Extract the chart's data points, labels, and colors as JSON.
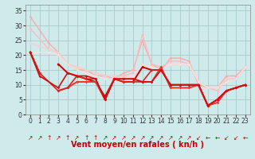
{
  "title": "",
  "xlabel": "Vent moyen/en rafales ( kn/h )",
  "xlim": [
    -0.5,
    23.5
  ],
  "ylim": [
    0,
    37
  ],
  "yticks": [
    0,
    5,
    10,
    15,
    20,
    25,
    30,
    35
  ],
  "xticks": [
    0,
    1,
    2,
    3,
    4,
    5,
    6,
    7,
    8,
    9,
    10,
    11,
    12,
    13,
    14,
    15,
    16,
    17,
    18,
    19,
    20,
    21,
    22,
    23
  ],
  "bg_color": "#ceeaea",
  "grid_color": "#aacccc",
  "series": [
    {
      "x": [
        0,
        2,
        3,
        4,
        5,
        6,
        7,
        8,
        9,
        10,
        11,
        12,
        13,
        14,
        15,
        16,
        17,
        18,
        19,
        20,
        21,
        22,
        23
      ],
      "y": [
        33,
        24,
        21,
        17,
        15,
        15,
        13,
        13,
        12,
        14,
        15,
        25,
        17,
        15,
        19,
        19,
        18,
        10,
        9,
        9,
        13,
        13,
        16
      ],
      "color": "#ffaaaa",
      "lw": 1.0
    },
    {
      "x": [
        0,
        2,
        3,
        4,
        5,
        6,
        7,
        8,
        9,
        10,
        11,
        12,
        13,
        14,
        15,
        16,
        17,
        18,
        19,
        20,
        21,
        22,
        23
      ],
      "y": [
        29,
        22,
        21,
        17,
        16,
        15,
        14,
        13,
        13,
        13,
        14,
        27,
        17,
        16,
        18,
        18,
        17,
        11,
        9,
        8,
        12,
        12,
        16
      ],
      "color": "#ffbbbb",
      "lw": 1.0
    },
    {
      "x": [
        0,
        2,
        3,
        4,
        5,
        6,
        7,
        8,
        9,
        10,
        11,
        12,
        13,
        14,
        15,
        16,
        17,
        18,
        19,
        20,
        21,
        22,
        23
      ],
      "y": [
        24,
        22,
        21,
        17,
        16,
        15,
        14,
        13,
        13,
        12,
        13,
        17,
        16,
        15,
        17,
        17,
        17,
        11,
        9,
        9,
        12,
        12,
        16
      ],
      "color": "#ffcccc",
      "lw": 1.0
    },
    {
      "x": [
        0,
        2,
        3,
        4,
        5,
        6,
        7,
        8,
        9,
        10,
        11,
        12,
        13,
        14,
        15,
        16,
        17,
        18,
        19,
        20,
        21,
        22,
        23
      ],
      "y": [
        21,
        21,
        20,
        17,
        15,
        14,
        13,
        12,
        12,
        12,
        13,
        17,
        16,
        15,
        17,
        17,
        17,
        11,
        9,
        9,
        11,
        12,
        16
      ],
      "color": "#ffdddd",
      "lw": 1.0
    },
    {
      "x": [
        0,
        1,
        2,
        3,
        4,
        5,
        6,
        7,
        8,
        9,
        10,
        11,
        12,
        13,
        14,
        15,
        16,
        17,
        18,
        19,
        20,
        21,
        22,
        23
      ],
      "y": [
        21,
        14,
        null,
        17,
        14,
        13,
        12,
        11,
        6,
        12,
        11,
        11,
        16,
        15,
        15,
        10,
        10,
        10,
        10,
        3,
        5,
        8,
        9,
        10
      ],
      "color": "#cc0000",
      "lw": 1.4
    },
    {
      "x": [
        0,
        1,
        2,
        3,
        4,
        5,
        6,
        7,
        8,
        9,
        10,
        11,
        12,
        13,
        14,
        15,
        16,
        17,
        18,
        19,
        20,
        21,
        22,
        23
      ],
      "y": [
        21,
        14,
        null,
        8,
        9,
        11,
        11,
        11,
        5,
        12,
        12,
        12,
        11,
        11,
        16,
        9,
        9,
        9,
        10,
        3,
        4,
        8,
        9,
        10
      ],
      "color": "#ee3333",
      "lw": 1.4
    },
    {
      "x": [
        0,
        1,
        3,
        4,
        5,
        6,
        7,
        8,
        9,
        10,
        11,
        12,
        13,
        14,
        15,
        16,
        17,
        18,
        19,
        20,
        21,
        22,
        23
      ],
      "y": [
        21,
        14,
        8,
        9,
        13,
        12,
        12,
        5,
        12,
        11,
        11,
        11,
        15,
        15,
        10,
        10,
        10,
        10,
        3,
        5,
        8,
        9,
        10
      ],
      "color": "#dd2222",
      "lw": 1.2
    },
    {
      "x": [
        0,
        1,
        3,
        4,
        5,
        6,
        7,
        8,
        9,
        10,
        11,
        12,
        13,
        14,
        15,
        16,
        17,
        18,
        19,
        20,
        21,
        22,
        23
      ],
      "y": [
        21,
        13,
        9,
        14,
        13,
        13,
        12,
        5,
        12,
        12,
        12,
        11,
        11,
        15,
        10,
        10,
        10,
        10,
        3,
        5,
        8,
        9,
        10
      ],
      "color": "#cc1111",
      "lw": 1.2
    }
  ],
  "arrows": [
    "↗",
    "↗",
    "↑",
    "↗",
    "↑",
    "↗",
    "↑",
    "↑",
    "↗",
    "↗",
    "↗",
    "↗",
    "↗",
    "↗",
    "↗",
    "↗",
    "↗",
    "↗",
    "↙",
    "←",
    "←",
    "↙",
    "↙",
    "←"
  ],
  "tick_fontsize": 5.5,
  "xlabel_fontsize": 7,
  "arrow_fontsize": 5.5
}
